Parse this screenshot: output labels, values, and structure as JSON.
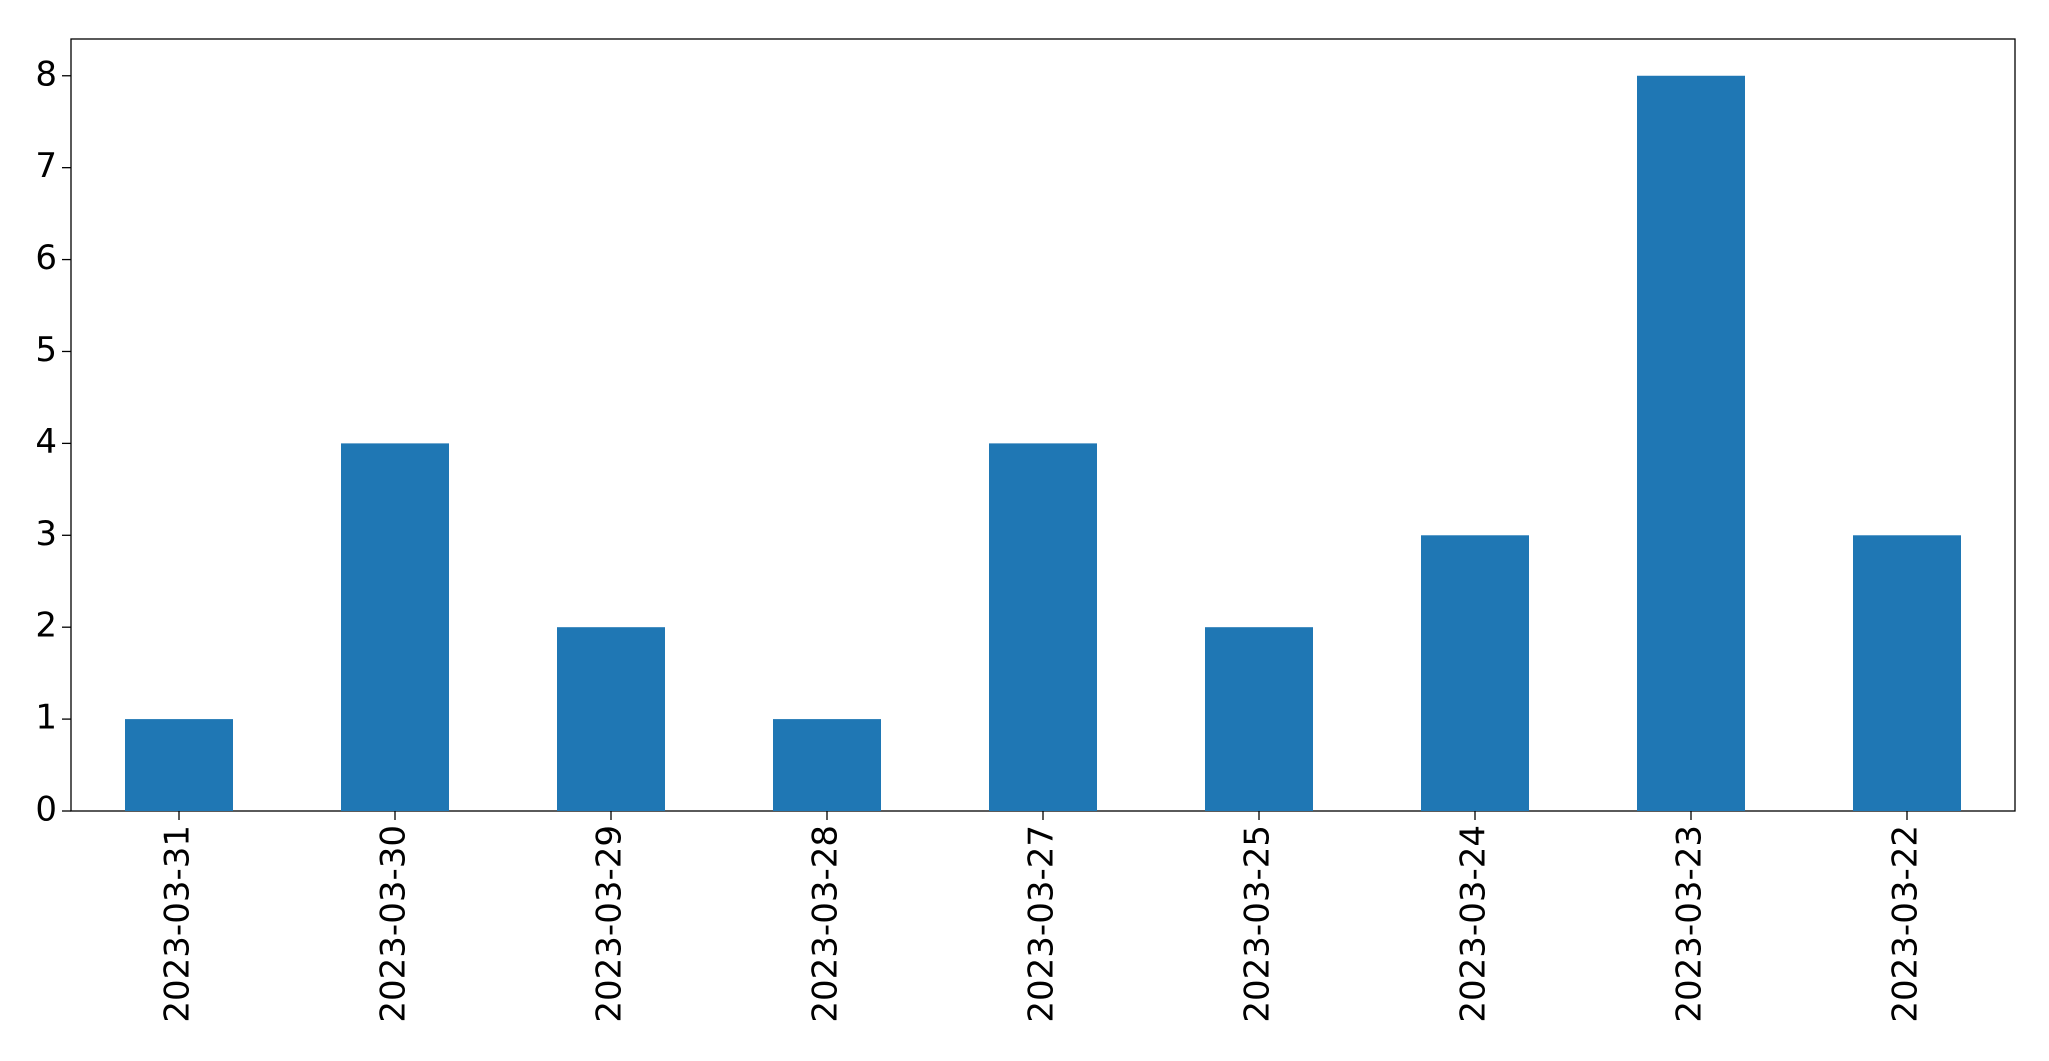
{
  "chart_data": {
    "type": "bar",
    "categories": [
      "2023-03-31",
      "2023-03-30",
      "2023-03-29",
      "2023-03-28",
      "2023-03-27",
      "2023-03-25",
      "2023-03-24",
      "2023-03-23",
      "2023-03-22"
    ],
    "values": [
      1,
      4,
      2,
      1,
      4,
      2,
      3,
      8,
      3
    ],
    "color": "#1f77b4",
    "ylim": [
      0,
      8.4
    ],
    "yticks": [
      0,
      1,
      2,
      3,
      4,
      5,
      6,
      7,
      8
    ],
    "grid": false
  }
}
